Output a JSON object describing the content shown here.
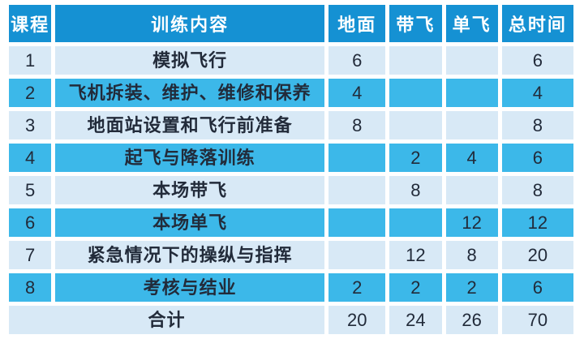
{
  "colors": {
    "header_blue": "#1591d3",
    "row_cyan": "#3cb8e9",
    "row_light": "#d8e9f6",
    "text_dark": "#222b3a",
    "header_text": "#ffffff",
    "gutter": "#ffffff"
  },
  "chart_data": {
    "type": "table",
    "title": "",
    "columns": [
      "课程",
      "训练内容",
      "地面",
      "带飞",
      "单飞",
      "总时间"
    ],
    "rows": [
      [
        "1",
        "模拟飞行",
        "6",
        "",
        "",
        "6"
      ],
      [
        "2",
        "飞机拆装、维护、维修和保养",
        "4",
        "",
        "",
        "4"
      ],
      [
        "3",
        "地面站设置和飞行前准备",
        "8",
        "",
        "",
        "8"
      ],
      [
        "4",
        "起飞与降落训练",
        "",
        "2",
        "4",
        "6"
      ],
      [
        "5",
        "本场带飞",
        "",
        "8",
        "",
        "8"
      ],
      [
        "6",
        "本场单飞",
        "",
        "",
        "12",
        "12"
      ],
      [
        "7",
        "紧急情况下的操纵与指挥",
        "",
        "12",
        "8",
        "20"
      ],
      [
        "8",
        "考核与结业",
        "2",
        "2",
        "2",
        "6"
      ]
    ],
    "footer": [
      "合计",
      "20",
      "24",
      "26",
      "70"
    ]
  }
}
